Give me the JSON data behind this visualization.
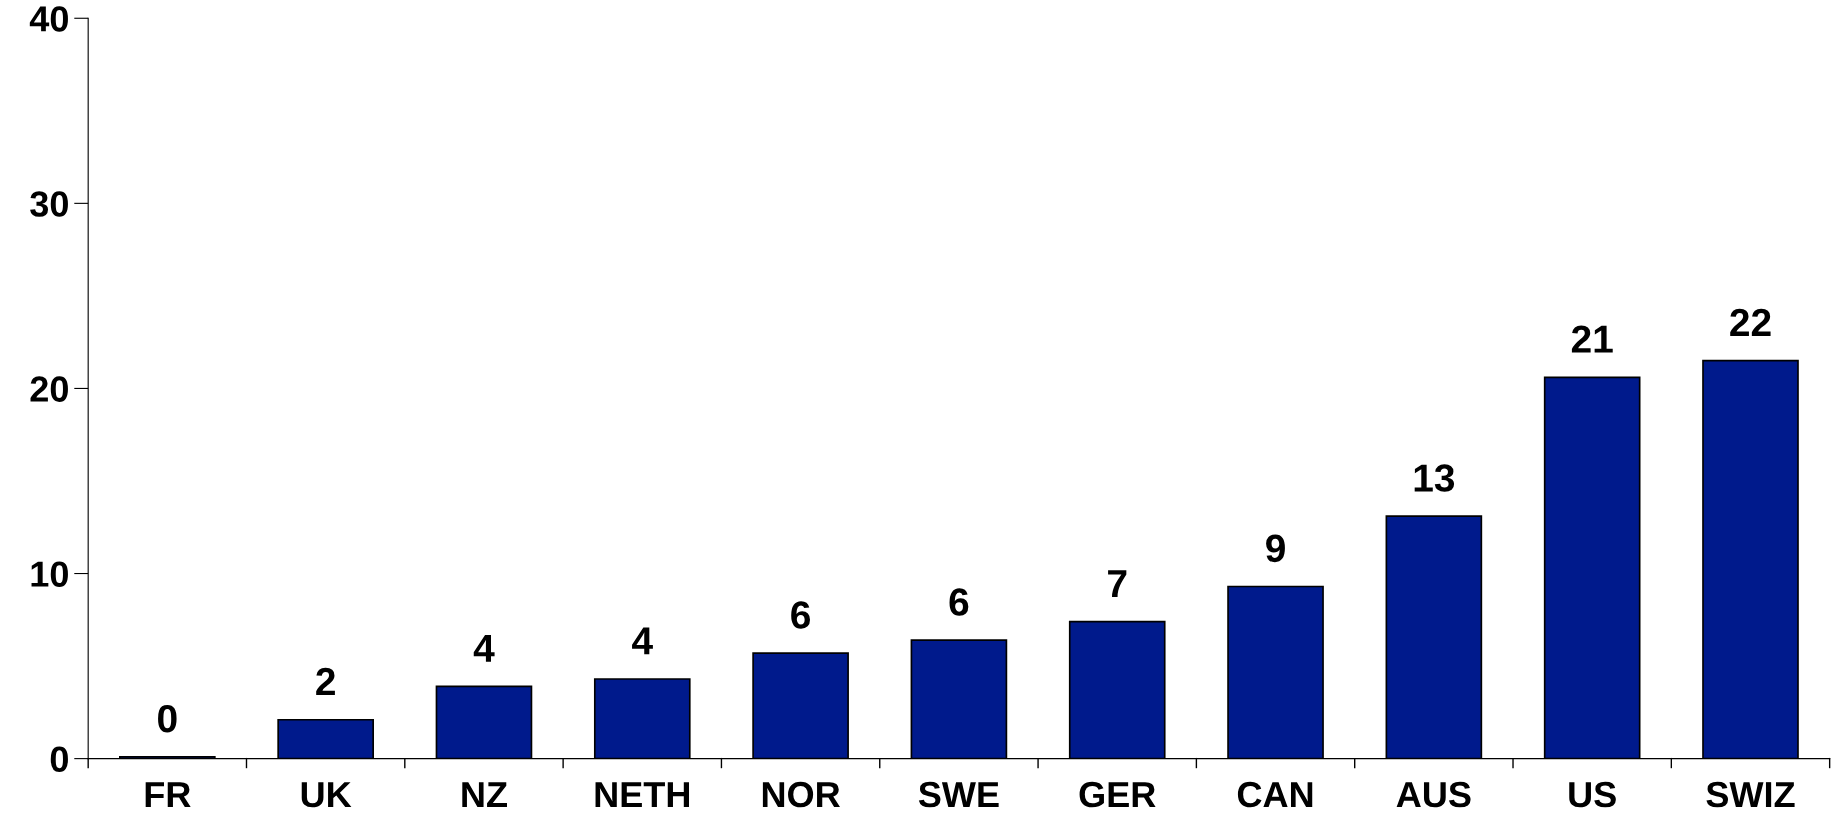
{
  "chart_data": {
    "type": "bar",
    "categories": [
      "FR",
      "UK",
      "NZ",
      "NETH",
      "NOR",
      "SWE",
      "GER",
      "CAN",
      "AUS",
      "US",
      "SWIZ"
    ],
    "values": [
      0.1,
      2.1,
      3.9,
      4.3,
      5.7,
      6.4,
      7.4,
      9.3,
      13.1,
      20.6,
      21.5
    ],
    "value_labels": [
      "0",
      "2",
      "4",
      "4",
      "6",
      "6",
      "7",
      "9",
      "13",
      "21",
      "22"
    ],
    "color": "#001a8c",
    "ylim": [
      0,
      40
    ],
    "yticks": [
      0,
      10,
      20,
      30,
      40
    ],
    "grid": false
  }
}
